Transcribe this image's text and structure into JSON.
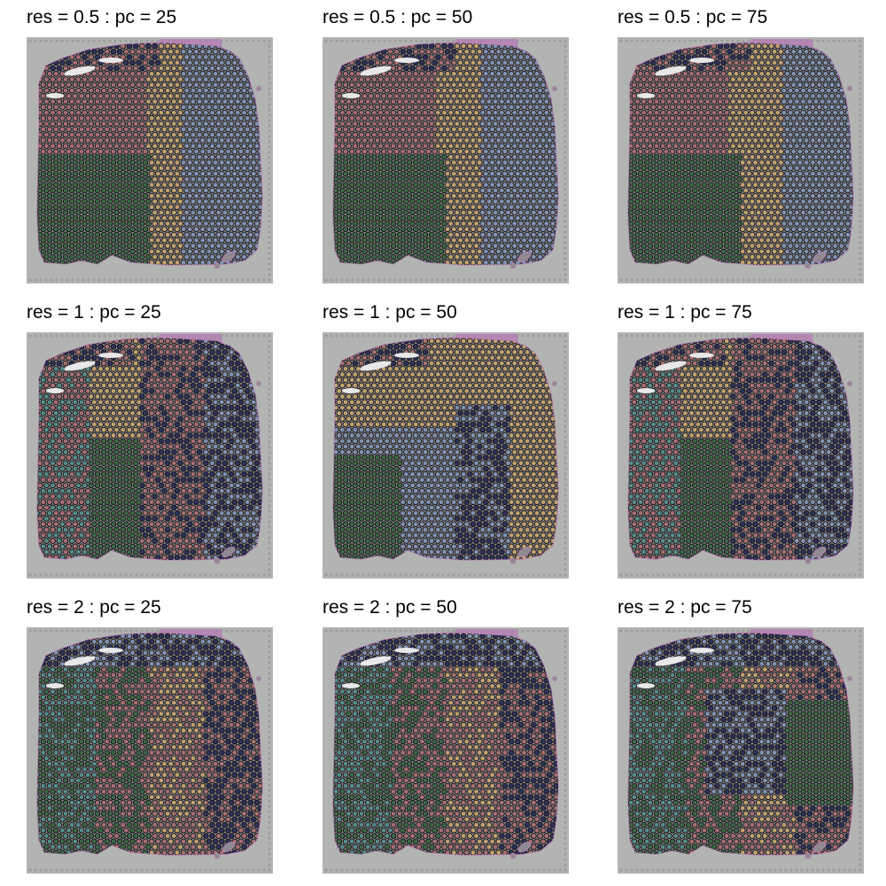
{
  "figure": {
    "panels": [
      {
        "title": "res = 0.5 : pc = 25"
      },
      {
        "title": "res = 0.5 : pc = 50"
      },
      {
        "title": "res = 0.5 : pc = 75"
      },
      {
        "title": "res = 1 : pc = 25"
      },
      {
        "title": "res = 1 : pc = 50"
      },
      {
        "title": "res = 1 : pc = 75"
      },
      {
        "title": "res = 2 : pc = 25"
      },
      {
        "title": "res = 2 : pc = 50"
      },
      {
        "title": "res = 2 : pc = 75"
      }
    ],
    "colors": {
      "background": "#b2b4b2",
      "tissue": "#8f8a8f",
      "band": "#b57fb3",
      "cluster_red": "#a96a6e",
      "cluster_yellow": "#c8a56c",
      "cluster_blue": "#7f93b8",
      "cluster_navy": "#1f2150",
      "cluster_green": "#2f5e3a",
      "cluster_teal": "#4d8c89",
      "spot_outline": "#111111"
    }
  }
}
